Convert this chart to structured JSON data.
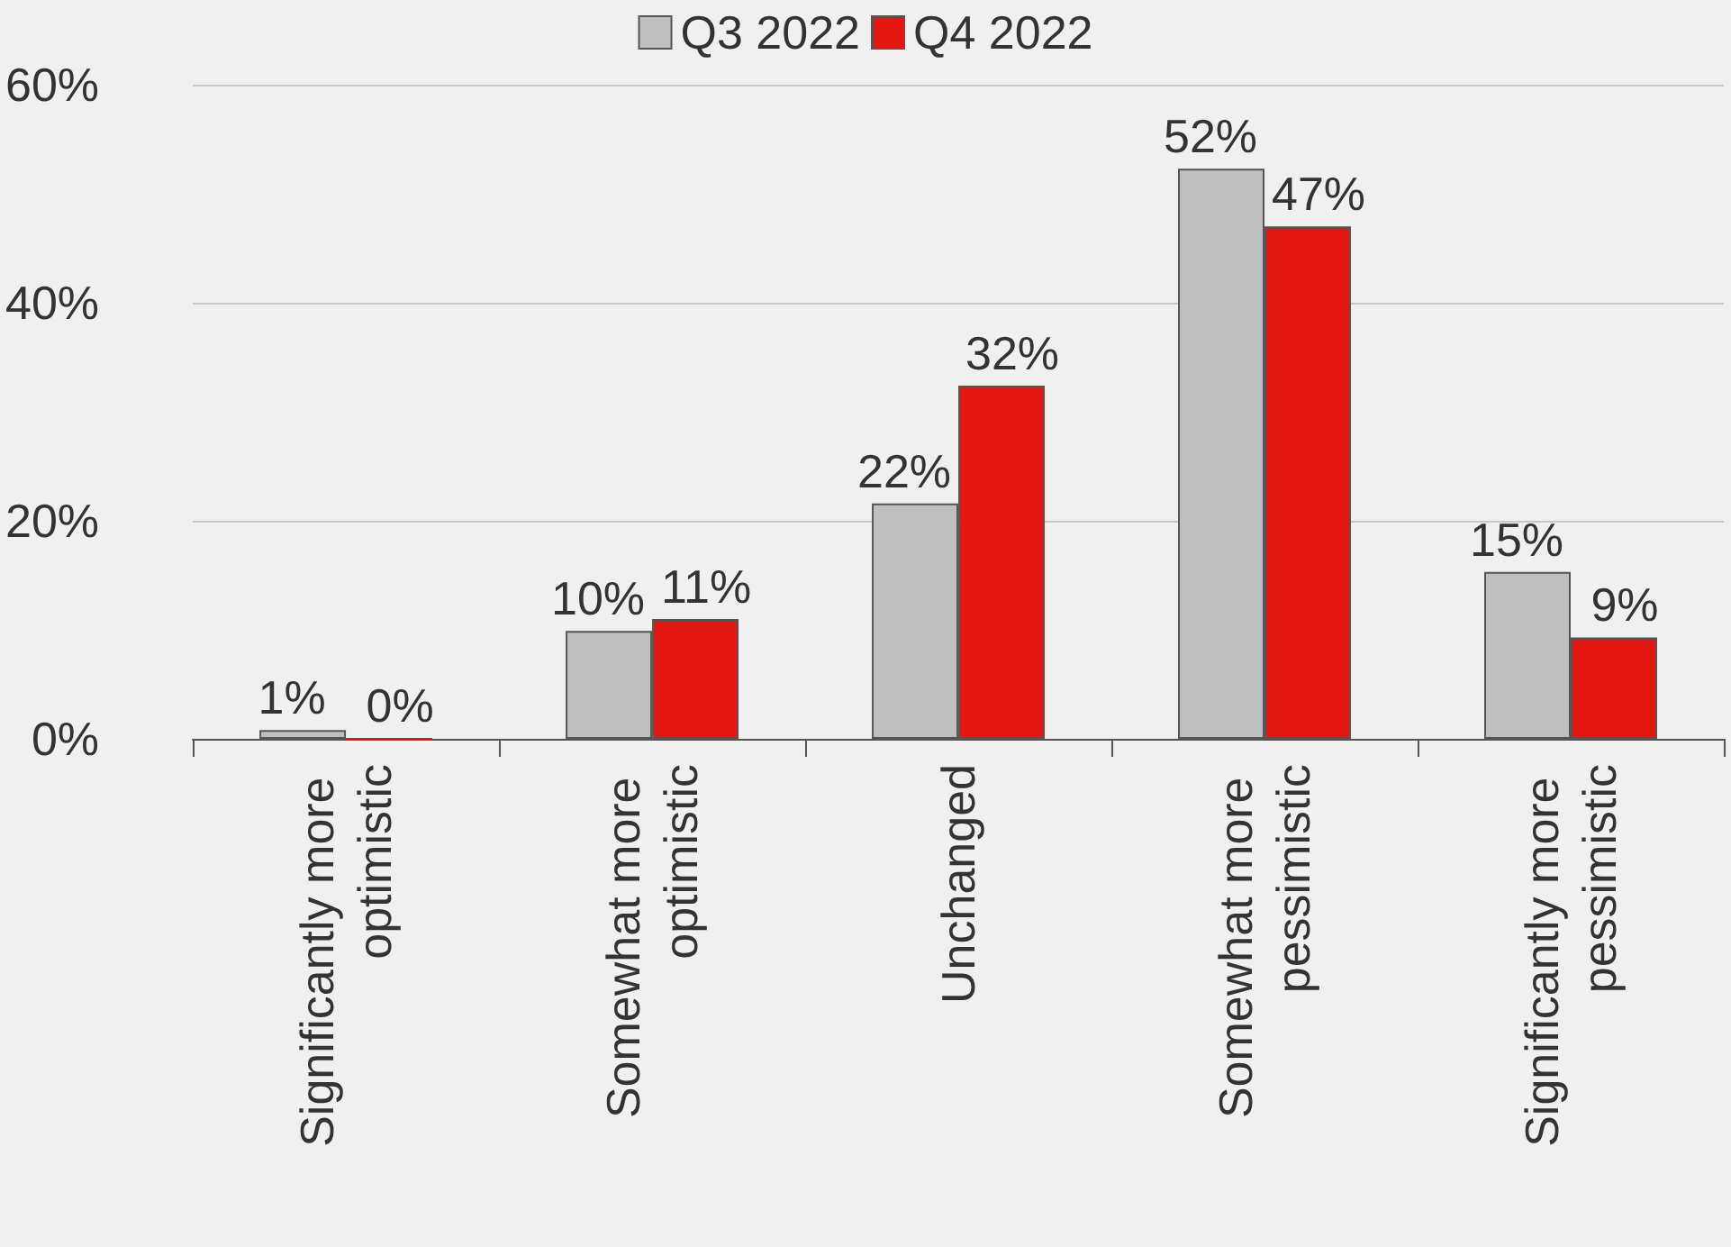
{
  "chart_data": {
    "type": "bar",
    "categories": [
      "Significantly more optimistic",
      "Somewhat more optimistic",
      "Unchanged",
      "Somewhat more pessimistic",
      "Significantly more pessimistic"
    ],
    "series": [
      {
        "name": "Q3 2022",
        "color": "#bfbfbf",
        "values": [
          0.8,
          9.9,
          21.6,
          52.3,
          15.3
        ],
        "value_labels": [
          "1%",
          "10%",
          "22%",
          "52%",
          "15%"
        ]
      },
      {
        "name": "Q4 2022",
        "color": "#e3170f",
        "values": [
          0,
          11,
          32.4,
          47,
          9.3
        ],
        "value_labels": [
          "0%",
          "11%",
          "32%",
          "47%",
          "9%"
        ]
      }
    ],
    "ylim": [
      0,
      60
    ],
    "yticks": [
      {
        "value": 0,
        "label": "0%"
      },
      {
        "value": 20,
        "label": "20%"
      },
      {
        "value": 40,
        "label": "40%"
      },
      {
        "value": 60,
        "label": "60%"
      }
    ],
    "grid": "y",
    "legend": "top"
  }
}
